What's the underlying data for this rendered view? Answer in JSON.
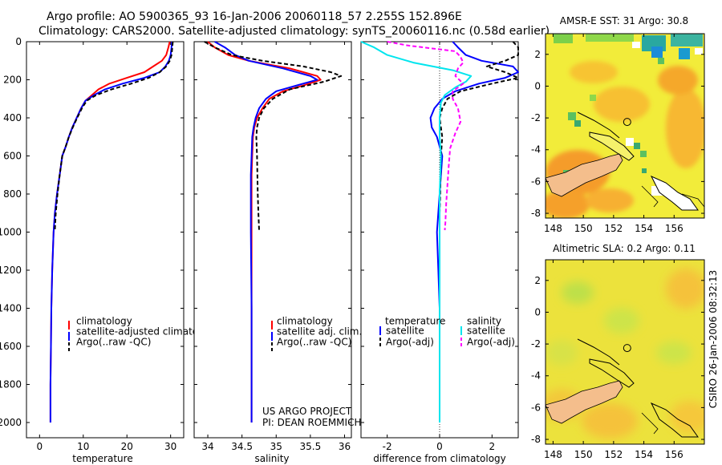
{
  "header": {
    "line1": "Argo profile: AO 5900365_93 16-Jan-2006 20060118_57 2.255S 152.896E",
    "line2": "Climatology: CARS2000. Satellite-adjusted climatology: synTS_20060116.nc (0.58d earlier)"
  },
  "credit": {
    "line1": "US ARGO PROJECT",
    "line2": "PI: DEAN ROEMMICH"
  },
  "timestamp": "CSIRO 26-Jan-2006 08:32:13",
  "colors": {
    "clim": "#ff0000",
    "sat": "#0000ff",
    "argo": "#000000",
    "sat_diff": "#00e5ee",
    "argo_diff": "#ff00ff",
    "land": "#f4be8c"
  },
  "chart_data": [
    {
      "type": "line",
      "id": "temperature",
      "xlabel": "temperature",
      "xlim": [
        -3,
        33
      ],
      "ylim": [
        0,
        2080
      ],
      "xticks": [
        0,
        10,
        20,
        30
      ],
      "yticks": [
        0,
        200,
        400,
        600,
        800,
        1000,
        1200,
        1400,
        1600,
        1800,
        2000
      ],
      "legend": {
        "position": "lower-right",
        "entries": [
          "climatology",
          "satellite-adjusted climatology",
          "Argo(..raw -QC)"
        ]
      },
      "series": [
        {
          "name": "climatology",
          "style": "clim",
          "x": [
            29.8,
            29.5,
            29,
            28,
            26,
            24,
            20,
            16,
            13.5,
            12,
            10.5,
            9.5,
            8.5,
            7.5,
            6.7,
            6,
            5.2,
            4.6,
            4,
            3.5,
            3.2,
            2.9,
            2.7,
            2.6,
            2.5,
            2.5
          ],
          "y": [
            0,
            30,
            70,
            100,
            130,
            160,
            190,
            220,
            250,
            280,
            310,
            350,
            400,
            450,
            500,
            550,
            600,
            700,
            800,
            900,
            1000,
            1200,
            1400,
            1600,
            1800,
            2000
          ]
        },
        {
          "name": "satellite-adjusted climatology",
          "style": "sat",
          "x": [
            30.3,
            30.2,
            30,
            29.6,
            28.8,
            27.5,
            24,
            19,
            15,
            12.5,
            10.5,
            9.5,
            8.5,
            7.5,
            6.7,
            6,
            5.2,
            4.6,
            4,
            3.5,
            3.2,
            2.9,
            2.7,
            2.6,
            2.5,
            2.5
          ],
          "y": [
            0,
            30,
            70,
            100,
            130,
            160,
            190,
            220,
            250,
            280,
            310,
            350,
            400,
            450,
            500,
            550,
            600,
            700,
            800,
            900,
            1000,
            1200,
            1400,
            1600,
            1800,
            2000
          ]
        },
        {
          "name": "Argo(..raw -QC)",
          "style": "argo",
          "x": [
            30.5,
            30.4,
            30.2,
            29.8,
            29,
            27.5,
            25,
            21,
            16.5,
            13,
            10.8,
            9.7,
            8.6,
            7.6,
            6.7,
            6,
            5.2,
            4.6,
            4.1,
            3.7,
            3.5
          ],
          "y": [
            0,
            30,
            70,
            100,
            130,
            160,
            190,
            220,
            250,
            280,
            310,
            350,
            400,
            450,
            500,
            550,
            600,
            700,
            800,
            900,
            990
          ]
        }
      ]
    },
    {
      "type": "line",
      "id": "salinity",
      "xlabel": "salinity",
      "xlim": [
        33.8,
        36.1
      ],
      "ylim": [
        0,
        2080
      ],
      "xticks": [
        34,
        34.5,
        35,
        35.5,
        36
      ],
      "yticks": [
        0,
        200,
        400,
        600,
        800,
        1000,
        1200,
        1400,
        1600,
        1800,
        2000
      ],
      "legend": {
        "position": "lower-right",
        "entries": [
          "climatology",
          "satellite adj. clim.",
          "Argo(..raw -QC)"
        ]
      },
      "series": [
        {
          "name": "climatology",
          "style": "clim",
          "x": [
            34.0,
            34.1,
            34.3,
            34.6,
            35.2,
            35.6,
            35.65,
            35.4,
            35.1,
            34.9,
            34.8,
            34.72,
            34.68,
            34.66,
            34.65,
            34.64,
            34.64,
            34.64,
            34.64,
            34.64,
            34.64
          ],
          "y": [
            0,
            30,
            70,
            100,
            140,
            180,
            200,
            230,
            260,
            300,
            350,
            400,
            450,
            500,
            600,
            700,
            800,
            1000,
            1400,
            1800,
            2000
          ]
        },
        {
          "name": "satellite adj. clim.",
          "style": "sat",
          "x": [
            34.1,
            34.25,
            34.4,
            34.6,
            35.1,
            35.5,
            35.6,
            35.3,
            35.0,
            34.85,
            34.75,
            34.7,
            34.67,
            34.65,
            34.64,
            34.63,
            34.63,
            34.63,
            34.64,
            34.64,
            34.64
          ],
          "y": [
            0,
            30,
            70,
            100,
            140,
            180,
            200,
            230,
            260,
            300,
            350,
            400,
            450,
            500,
            600,
            700,
            800,
            1000,
            1400,
            1800,
            2000
          ]
        },
        {
          "name": "Argo(..raw -QC)",
          "style": "argo",
          "x": [
            33.95,
            34.1,
            34.35,
            34.8,
            35.4,
            35.8,
            35.95,
            35.7,
            35.2,
            34.95,
            34.82,
            34.75,
            34.72,
            34.71,
            34.72,
            34.73,
            34.74,
            34.75
          ],
          "y": [
            0,
            30,
            70,
            100,
            130,
            160,
            180,
            210,
            250,
            300,
            350,
            400,
            450,
            500,
            600,
            800,
            900,
            990
          ]
        }
      ]
    },
    {
      "type": "line",
      "id": "difference",
      "xlabel": "difference from climatology",
      "xlim": [
        -3,
        3
      ],
      "ylim": [
        0,
        2080
      ],
      "xticks": [
        -2,
        0,
        2
      ],
      "yticks": [
        0,
        200,
        400,
        600,
        800,
        1000,
        1200,
        1400,
        1600,
        1800,
        2000
      ],
      "legend": {
        "position": "lower-center",
        "entries": [
          "temperature",
          "salinity",
          "satellite",
          "Argo(-adj)",
          "satellite",
          "Argo(-adj)"
        ]
      },
      "series": [
        {
          "name": "temperature satellite",
          "style": "sat",
          "x": [
            0.5,
            0.7,
            1.0,
            1.6,
            2.8,
            3.0,
            2.5,
            1.5,
            0.6,
            0.1,
            -0.2,
            -0.35,
            -0.3,
            -0.1,
            0.1,
            0.0,
            -0.1,
            -0.05,
            0.0,
            0.0,
            0.0
          ],
          "y": [
            0,
            30,
            70,
            100,
            130,
            160,
            190,
            220,
            260,
            300,
            350,
            400,
            450,
            500,
            600,
            800,
            1000,
            1200,
            1400,
            1700,
            2000
          ]
        },
        {
          "name": "temperature Argo(-adj)",
          "style": "argo",
          "x": [
            2.8,
            3.0,
            3.0,
            2.5,
            1.8,
            2.5,
            3.0,
            2.0,
            0.8,
            0.3,
            0.1,
            0.0,
            0.05,
            0.1,
            0.05,
            0.02,
            0.0,
            0.0
          ],
          "y": [
            0,
            30,
            70,
            100,
            130,
            160,
            190,
            220,
            260,
            300,
            350,
            400,
            450,
            500,
            600,
            800,
            900,
            990
          ]
        },
        {
          "name": "salinity satellite",
          "style": "sat_diff",
          "x": [
            -3.0,
            -2.5,
            -2.0,
            -1.0,
            0.5,
            1.2,
            1.0,
            0.6,
            0.2,
            0.05,
            0.0,
            0.0,
            0.05,
            0.0,
            0.0,
            0.0,
            0.0,
            0.0
          ],
          "y": [
            0,
            30,
            70,
            110,
            150,
            180,
            210,
            240,
            280,
            320,
            400,
            500,
            600,
            800,
            1000,
            1400,
            1800,
            2000
          ]
        },
        {
          "name": "salinity Argo(-adj)",
          "style": "argo_diff",
          "x": [
            -2.0,
            -1.2,
            0.6,
            0.8,
            0.9,
            0.7,
            0.6,
            0.9,
            0.5,
            0.5,
            0.7,
            0.8,
            0.6,
            0.4,
            0.35,
            0.3,
            0.25,
            0.22,
            0.2
          ],
          "y": [
            0,
            20,
            50,
            80,
            110,
            140,
            180,
            220,
            260,
            300,
            350,
            420,
            480,
            560,
            650,
            750,
            850,
            950,
            990
          ]
        }
      ]
    },
    {
      "type": "heatmap",
      "id": "sst-map",
      "title": "AMSR-E SST: 31 Argo: 30.8",
      "xlim": [
        147.5,
        158
      ],
      "ylim": [
        -8.3,
        3.3
      ],
      "xticks": [
        148,
        150,
        152,
        154,
        156
      ],
      "yticks": [
        2,
        0,
        -2,
        -4,
        -6,
        -8
      ],
      "argo_position": {
        "lon": 152.896,
        "lat": -2.255
      }
    },
    {
      "type": "heatmap",
      "id": "sla-map",
      "title": "Altimetric SLA: 0.2 Argo: 0.11",
      "xlim": [
        147.5,
        158
      ],
      "ylim": [
        -8.3,
        3.3
      ],
      "xticks": [
        148,
        150,
        152,
        154,
        156
      ],
      "yticks": [
        2,
        0,
        -2,
        -4,
        -6,
        -8
      ],
      "argo_position": {
        "lon": 152.896,
        "lat": -2.255
      }
    }
  ]
}
